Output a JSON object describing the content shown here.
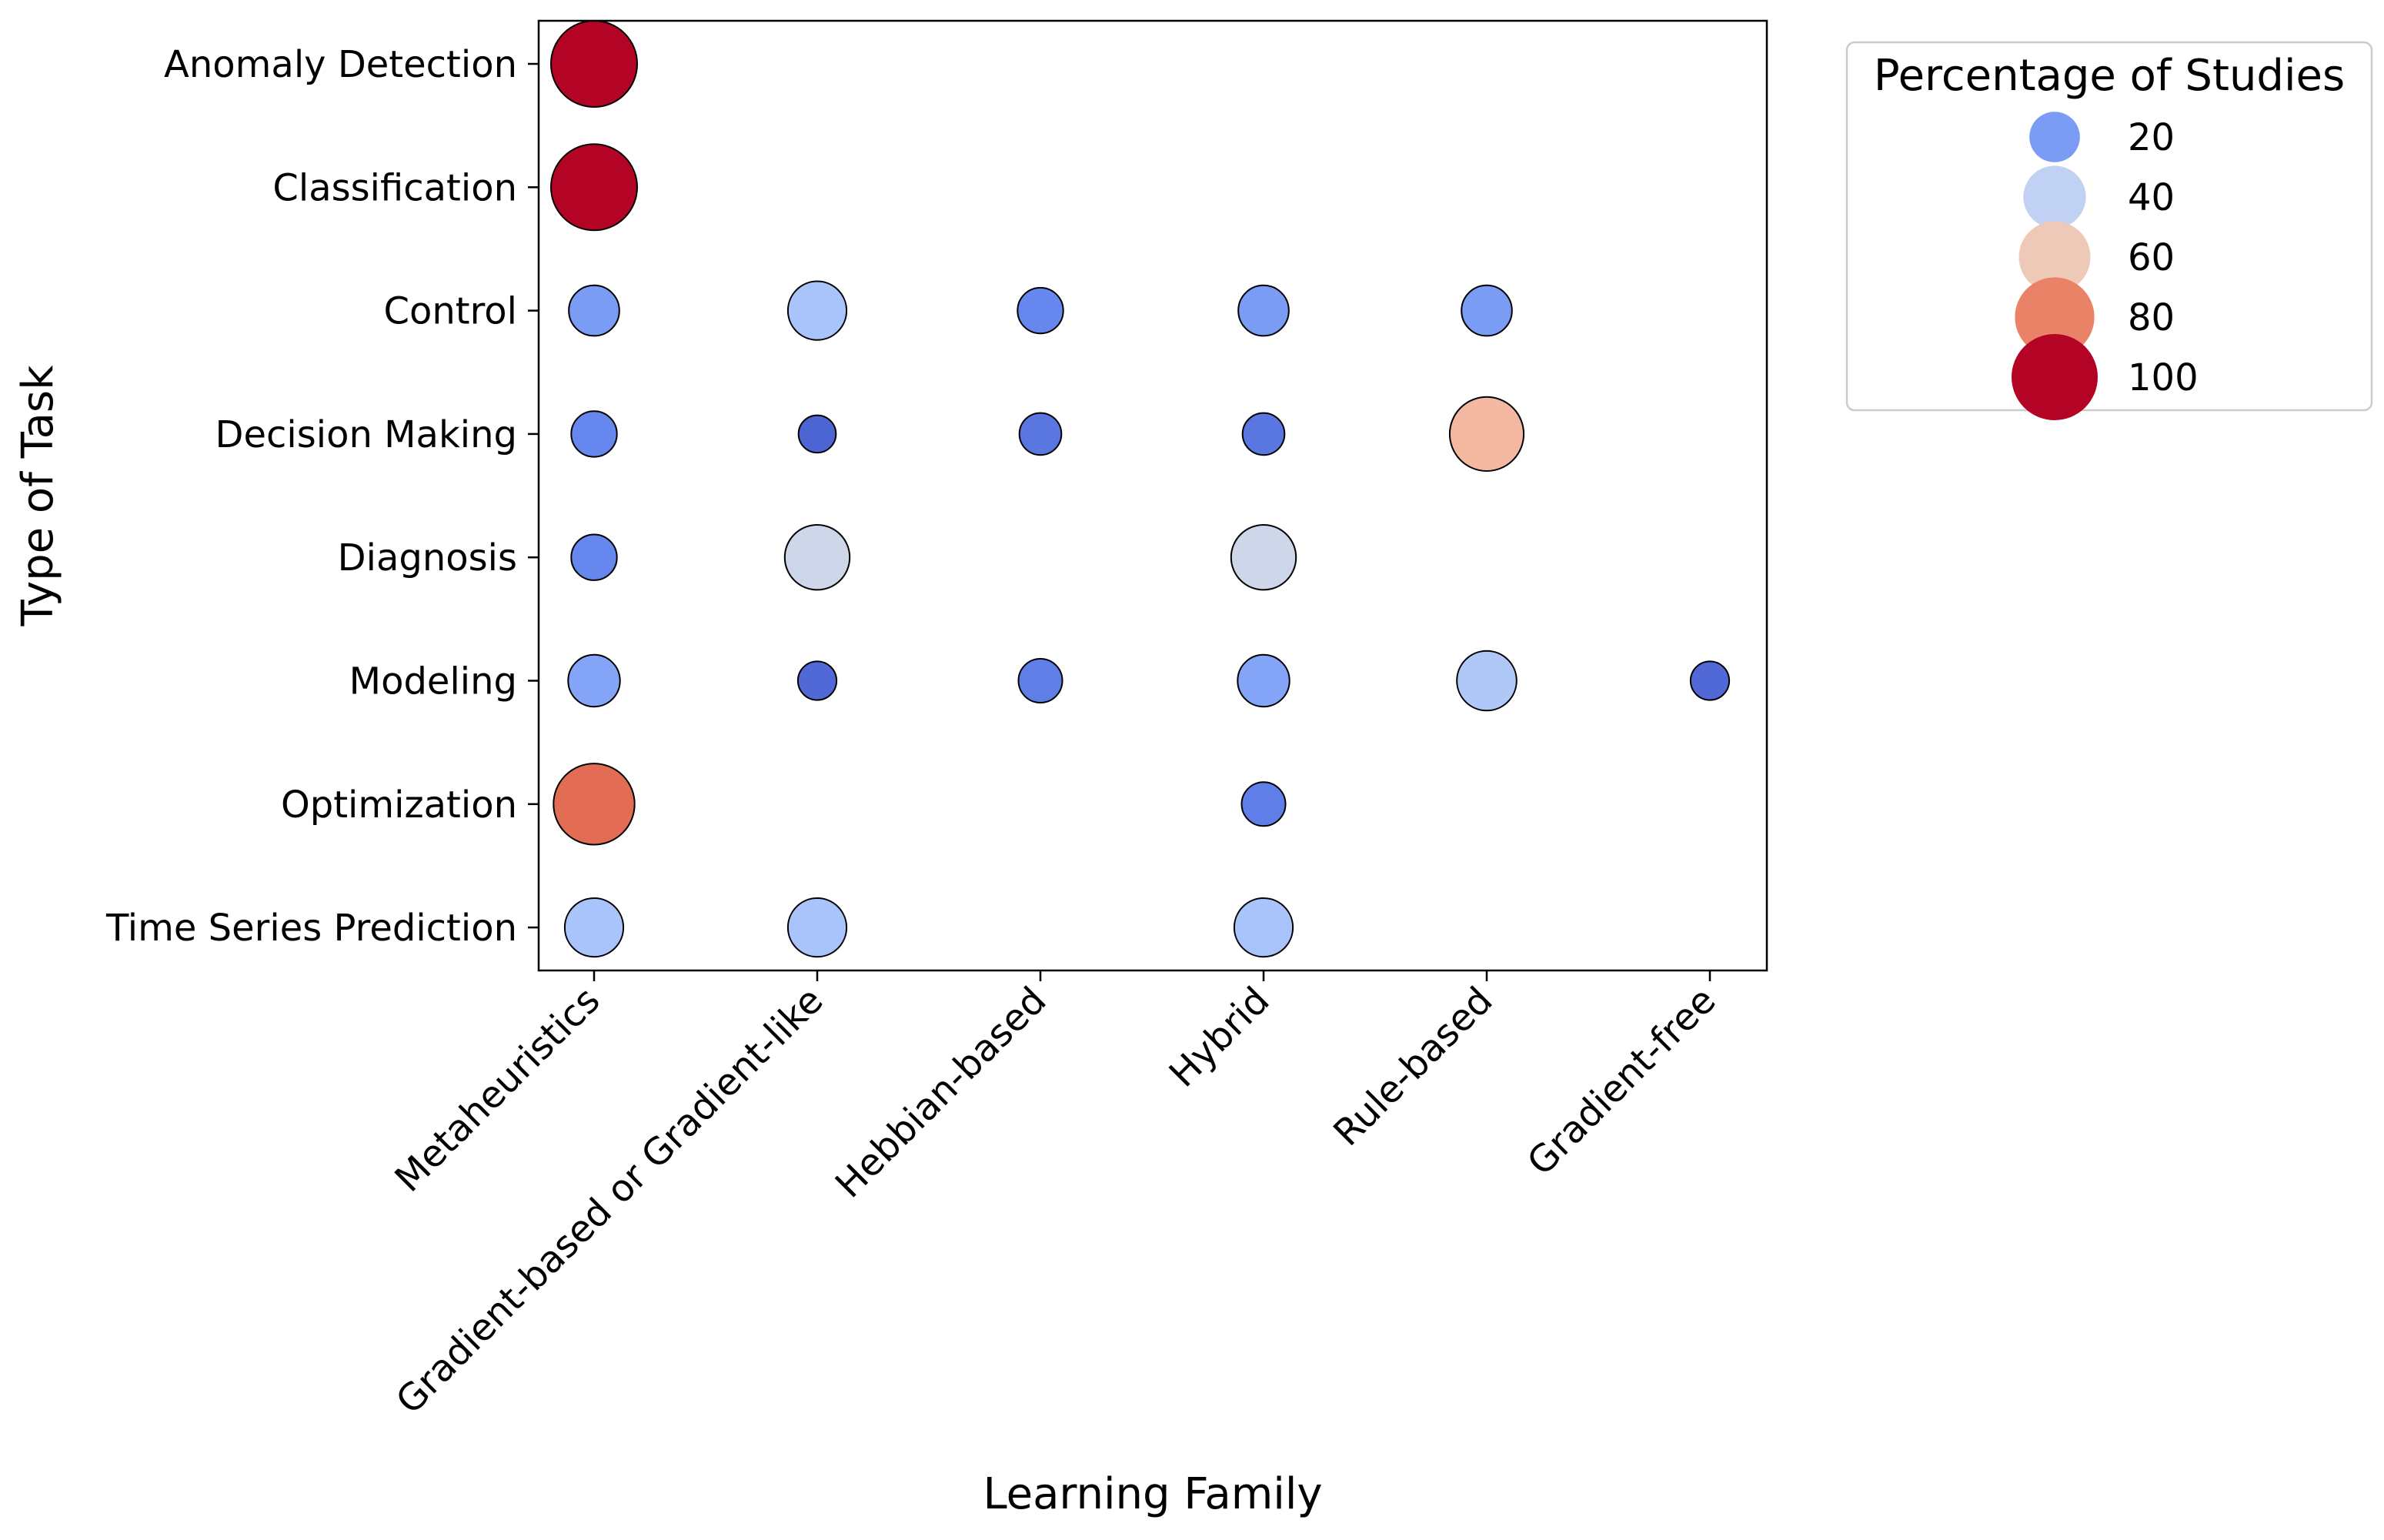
{
  "chart_data": {
    "type": "scatter",
    "subtype": "bubble",
    "xlabel": "Learning Family",
    "ylabel": "Type of Task",
    "x_categories": [
      "Metaheuristics",
      "Gradient-based or Gradient-like",
      "Hebbian-based",
      "Hybrid",
      "Rule-based",
      "Gradient-free"
    ],
    "y_categories": [
      "Anomaly Detection",
      "Classification",
      "Control",
      "Decision Making",
      "Diagnosis",
      "Modeling",
      "Optimization",
      "Time Series Prediction"
    ],
    "points": [
      {
        "x": "Metaheuristics",
        "y": "Anomaly Detection",
        "value": 100
      },
      {
        "x": "Metaheuristics",
        "y": "Classification",
        "value": 100
      },
      {
        "x": "Metaheuristics",
        "y": "Control",
        "value": 20
      },
      {
        "x": "Gradient-based or Gradient-like",
        "y": "Control",
        "value": 33
      },
      {
        "x": "Hebbian-based",
        "y": "Control",
        "value": 14
      },
      {
        "x": "Hybrid",
        "y": "Control",
        "value": 20
      },
      {
        "x": "Rule-based",
        "y": "Control",
        "value": 20
      },
      {
        "x": "Metaheuristics",
        "y": "Decision Making",
        "value": 14
      },
      {
        "x": "Gradient-based or Gradient-like",
        "y": "Decision Making",
        "value": 6
      },
      {
        "x": "Hebbian-based",
        "y": "Decision Making",
        "value": 10
      },
      {
        "x": "Hybrid",
        "y": "Decision Making",
        "value": 10
      },
      {
        "x": "Rule-based",
        "y": "Decision Making",
        "value": 66
      },
      {
        "x": "Metaheuristics",
        "y": "Diagnosis",
        "value": 14
      },
      {
        "x": "Gradient-based or Gradient-like",
        "y": "Diagnosis",
        "value": 45
      },
      {
        "x": "Hybrid",
        "y": "Diagnosis",
        "value": 45
      },
      {
        "x": "Metaheuristics",
        "y": "Modeling",
        "value": 22
      },
      {
        "x": "Gradient-based or Gradient-like",
        "y": "Modeling",
        "value": 7
      },
      {
        "x": "Hebbian-based",
        "y": "Modeling",
        "value": 12
      },
      {
        "x": "Hybrid",
        "y": "Modeling",
        "value": 22
      },
      {
        "x": "Rule-based",
        "y": "Modeling",
        "value": 35
      },
      {
        "x": "Gradient-free",
        "y": "Modeling",
        "value": 7
      },
      {
        "x": "Metaheuristics",
        "y": "Optimization",
        "value": 85
      },
      {
        "x": "Hybrid",
        "y": "Optimization",
        "value": 12
      },
      {
        "x": "Metaheuristics",
        "y": "Time Series Prediction",
        "value": 33
      },
      {
        "x": "Gradient-based or Gradient-like",
        "y": "Time Series Prediction",
        "value": 33
      },
      {
        "x": "Hybrid",
        "y": "Time Series Prediction",
        "value": 33
      }
    ],
    "size_range": [
      0,
      100
    ],
    "colormap": "coolwarm",
    "colormap_stops": [
      "#3b4cc0",
      "#6788ee",
      "#9abbff",
      "#c9d7f0",
      "#edd1c2",
      "#f7a889",
      "#e26952",
      "#b40426"
    ],
    "marker_edge_color": "#000000",
    "legend": {
      "title": "Percentage of Studies",
      "placement": "outside-top-right",
      "entries": [
        {
          "label": "20",
          "value": 20
        },
        {
          "label": "40",
          "value": 40
        },
        {
          "label": "60",
          "value": 60
        },
        {
          "label": "80",
          "value": 80
        },
        {
          "label": "100",
          "value": 100
        }
      ]
    },
    "grid": false
  }
}
